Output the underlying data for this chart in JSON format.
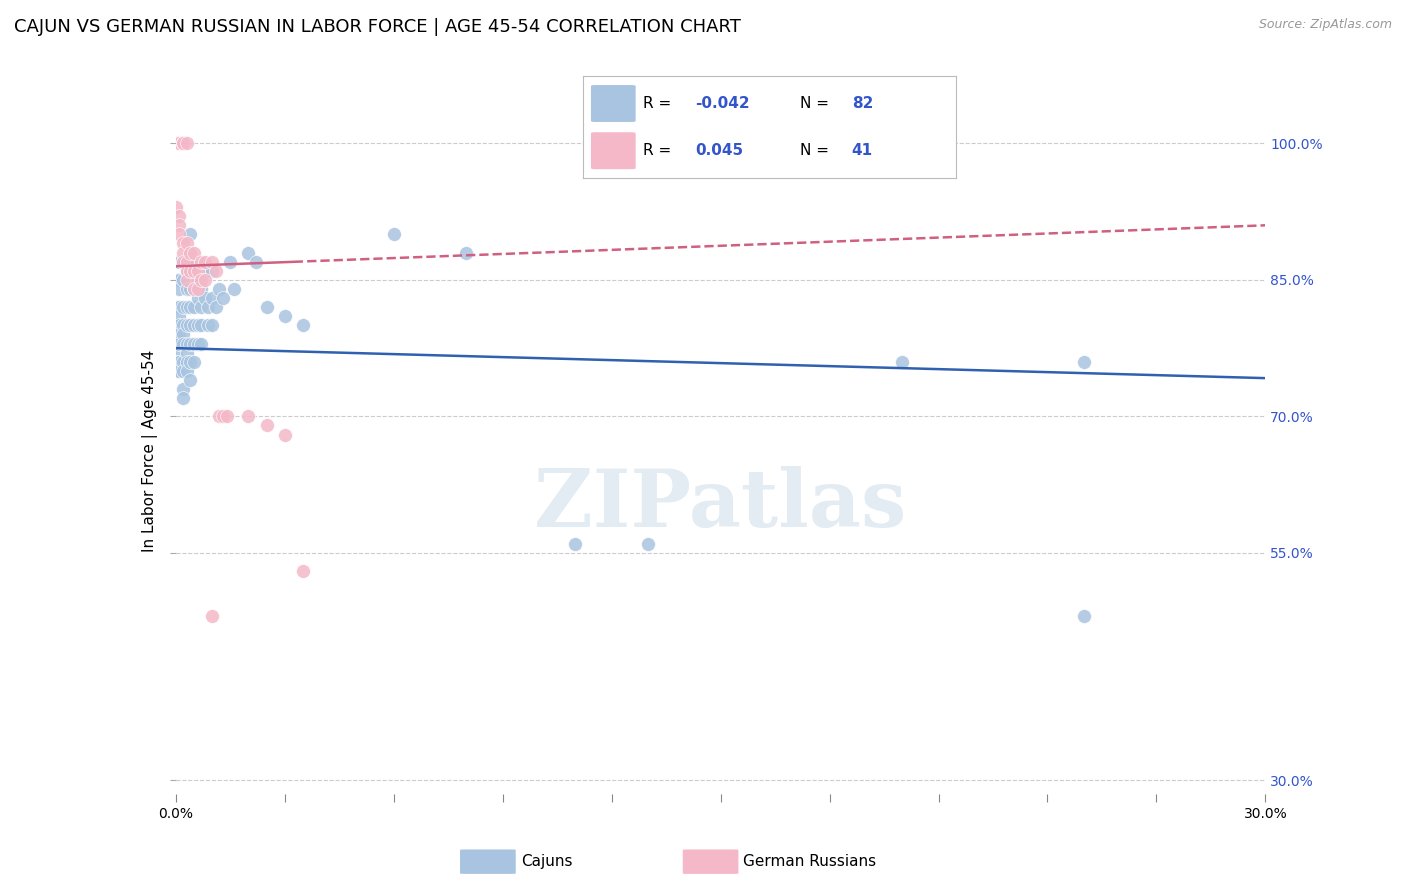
{
  "title": "CAJUN VS GERMAN RUSSIAN IN LABOR FORCE | AGE 45-54 CORRELATION CHART",
  "source": "Source: ZipAtlas.com",
  "ylabel": "In Labor Force | Age 45-54",
  "y_ticks": [
    0.3,
    0.55,
    0.7,
    0.85,
    1.0
  ],
  "y_tick_labels": [
    "30.0%",
    "55.0%",
    "70.0%",
    "85.0%",
    "100.0%"
  ],
  "x_range": [
    0.0,
    0.3
  ],
  "y_range": [
    0.285,
    1.04
  ],
  "legend_blue_label": "Cajuns",
  "legend_pink_label": "German Russians",
  "R_blue": -0.042,
  "N_blue": 82,
  "R_pink": 0.045,
  "N_pink": 41,
  "blue_color": "#a8c4e0",
  "pink_color": "#f4b8c8",
  "blue_line_color": "#3060b0",
  "pink_line_color": "#d06080",
  "background_color": "#ffffff",
  "grid_color": "#cccccc",
  "title_fontsize": 13,
  "axis_label_fontsize": 11,
  "tick_fontsize": 10,
  "watermark": "ZIPatlas",
  "watermark_color": "#c8d8e8",
  "blue_scatter": [
    [
      0.0,
      0.85
    ],
    [
      0.0,
      0.82
    ],
    [
      0.0,
      0.8
    ],
    [
      0.0,
      0.79
    ],
    [
      0.0,
      0.78
    ],
    [
      0.0,
      0.77
    ],
    [
      0.0,
      0.76
    ],
    [
      0.0,
      0.75
    ],
    [
      0.001,
      0.87
    ],
    [
      0.001,
      0.85
    ],
    [
      0.001,
      0.84
    ],
    [
      0.001,
      0.82
    ],
    [
      0.001,
      0.81
    ],
    [
      0.001,
      0.8
    ],
    [
      0.001,
      0.79
    ],
    [
      0.001,
      0.78
    ],
    [
      0.001,
      0.76
    ],
    [
      0.001,
      0.75
    ],
    [
      0.002,
      0.87
    ],
    [
      0.002,
      0.85
    ],
    [
      0.002,
      0.82
    ],
    [
      0.002,
      0.8
    ],
    [
      0.002,
      0.79
    ],
    [
      0.002,
      0.78
    ],
    [
      0.002,
      0.76
    ],
    [
      0.002,
      0.75
    ],
    [
      0.002,
      0.73
    ],
    [
      0.002,
      0.72
    ],
    [
      0.003,
      0.86
    ],
    [
      0.003,
      0.84
    ],
    [
      0.003,
      0.82
    ],
    [
      0.003,
      0.8
    ],
    [
      0.003,
      0.78
    ],
    [
      0.003,
      0.77
    ],
    [
      0.003,
      0.76
    ],
    [
      0.003,
      0.75
    ],
    [
      0.004,
      0.9
    ],
    [
      0.004,
      0.87
    ],
    [
      0.004,
      0.84
    ],
    [
      0.004,
      0.82
    ],
    [
      0.004,
      0.8
    ],
    [
      0.004,
      0.78
    ],
    [
      0.004,
      0.76
    ],
    [
      0.004,
      0.74
    ],
    [
      0.005,
      0.86
    ],
    [
      0.005,
      0.84
    ],
    [
      0.005,
      0.82
    ],
    [
      0.005,
      0.8
    ],
    [
      0.005,
      0.78
    ],
    [
      0.005,
      0.76
    ],
    [
      0.006,
      0.85
    ],
    [
      0.006,
      0.83
    ],
    [
      0.006,
      0.8
    ],
    [
      0.006,
      0.78
    ],
    [
      0.007,
      0.84
    ],
    [
      0.007,
      0.82
    ],
    [
      0.007,
      0.8
    ],
    [
      0.007,
      0.78
    ],
    [
      0.008,
      0.86
    ],
    [
      0.008,
      0.83
    ],
    [
      0.009,
      0.82
    ],
    [
      0.009,
      0.8
    ],
    [
      0.01,
      0.86
    ],
    [
      0.01,
      0.83
    ],
    [
      0.01,
      0.8
    ],
    [
      0.011,
      0.82
    ],
    [
      0.012,
      0.84
    ],
    [
      0.013,
      0.83
    ],
    [
      0.015,
      0.87
    ],
    [
      0.016,
      0.84
    ],
    [
      0.02,
      0.88
    ],
    [
      0.022,
      0.87
    ],
    [
      0.025,
      0.82
    ],
    [
      0.03,
      0.81
    ],
    [
      0.035,
      0.8
    ],
    [
      0.06,
      0.9
    ],
    [
      0.08,
      0.88
    ],
    [
      0.11,
      0.56
    ],
    [
      0.13,
      0.56
    ],
    [
      0.2,
      0.76
    ],
    [
      0.25,
      0.76
    ],
    [
      0.25,
      0.48
    ]
  ],
  "pink_scatter": [
    [
      0.0,
      1.0
    ],
    [
      0.001,
      1.0
    ],
    [
      0.001,
      1.0
    ],
    [
      0.002,
      1.0
    ],
    [
      0.002,
      1.0
    ],
    [
      0.002,
      1.0
    ],
    [
      0.002,
      1.0
    ],
    [
      0.002,
      1.0
    ],
    [
      0.003,
      1.0
    ],
    [
      0.0,
      0.93
    ],
    [
      0.001,
      0.92
    ],
    [
      0.001,
      0.91
    ],
    [
      0.001,
      0.9
    ],
    [
      0.002,
      0.89
    ],
    [
      0.002,
      0.88
    ],
    [
      0.002,
      0.87
    ],
    [
      0.003,
      0.89
    ],
    [
      0.003,
      0.87
    ],
    [
      0.003,
      0.86
    ],
    [
      0.003,
      0.85
    ],
    [
      0.004,
      0.88
    ],
    [
      0.004,
      0.86
    ],
    [
      0.005,
      0.88
    ],
    [
      0.005,
      0.86
    ],
    [
      0.005,
      0.84
    ],
    [
      0.006,
      0.86
    ],
    [
      0.006,
      0.84
    ],
    [
      0.007,
      0.87
    ],
    [
      0.007,
      0.85
    ],
    [
      0.008,
      0.87
    ],
    [
      0.008,
      0.85
    ],
    [
      0.01,
      0.87
    ],
    [
      0.011,
      0.86
    ],
    [
      0.012,
      0.7
    ],
    [
      0.013,
      0.7
    ],
    [
      0.014,
      0.7
    ],
    [
      0.02,
      0.7
    ],
    [
      0.025,
      0.69
    ],
    [
      0.03,
      0.68
    ],
    [
      0.035,
      0.53
    ],
    [
      0.01,
      0.48
    ]
  ]
}
